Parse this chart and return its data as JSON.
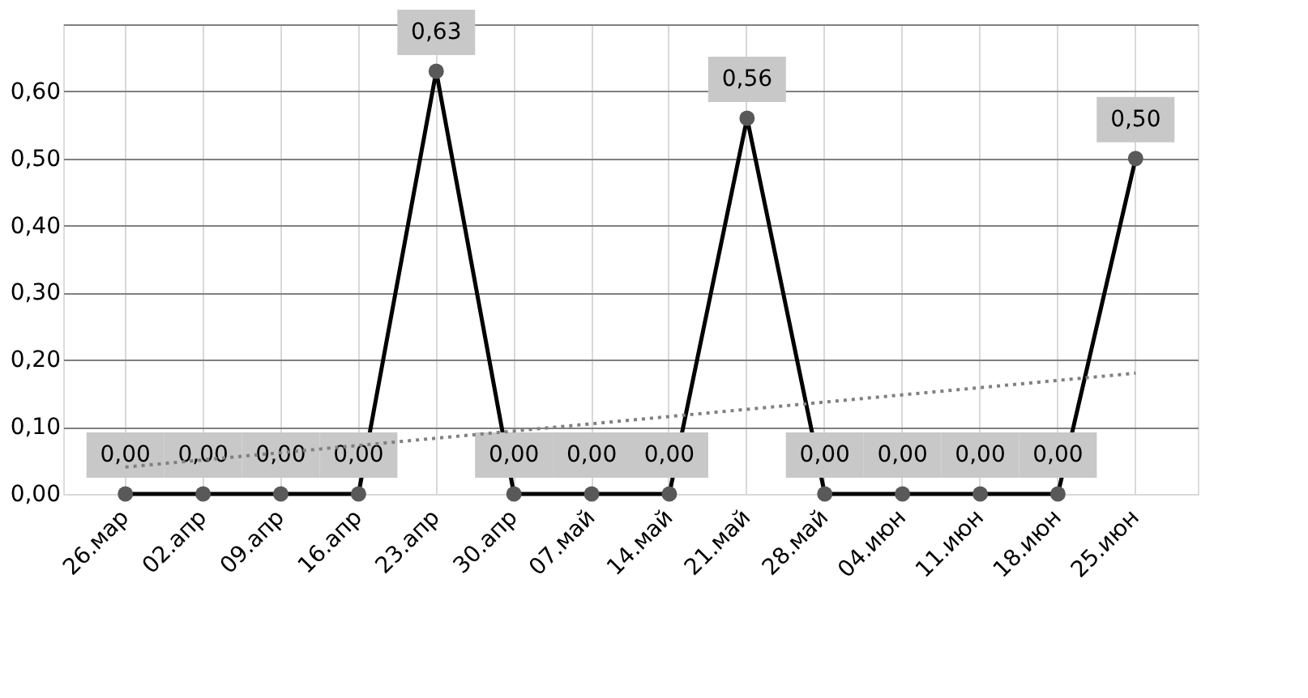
{
  "chart_data": {
    "type": "line",
    "categories": [
      "26.мар",
      "02.апр",
      "09.апр",
      "16.апр",
      "23.апр",
      "30.апр",
      "07.май",
      "14.май",
      "21.май",
      "28.май",
      "04.июн",
      "11.июн",
      "18.июн",
      "25.июн"
    ],
    "series": [
      {
        "color": "#000000",
        "marker": "circle",
        "values": [
          0,
          0,
          0,
          0,
          0.63,
          0,
          0,
          0,
          0.56,
          0,
          0,
          0,
          0,
          0.5
        ],
        "value_labels": [
          "0,00",
          "0,00",
          "0,00",
          "0,00",
          "0,63",
          "0,00",
          "0,00",
          "0,00",
          "0,56",
          "0,00",
          "0,00",
          "0,00",
          "0,00",
          "0,50"
        ]
      },
      {
        "color": "#808080",
        "marker": "none",
        "line_style": "dotted",
        "x": [
          "26.мар",
          "25.июн"
        ],
        "values": [
          0.04,
          0.18
        ]
      }
    ],
    "ylim": [
      0,
      0.7
    ],
    "yticks": [
      {
        "value": 0,
        "label": "0,00"
      },
      {
        "value": 0.1,
        "label": "0,10"
      },
      {
        "value": 0.2,
        "label": "0,20"
      },
      {
        "value": 0.3,
        "label": "0,30"
      },
      {
        "value": 0.4,
        "label": "0,40"
      },
      {
        "value": 0.5,
        "label": "0,50"
      },
      {
        "value": 0.6,
        "label": "0,60"
      },
      {
        "value": 0.7,
        "label": null
      }
    ],
    "grid": true
  }
}
